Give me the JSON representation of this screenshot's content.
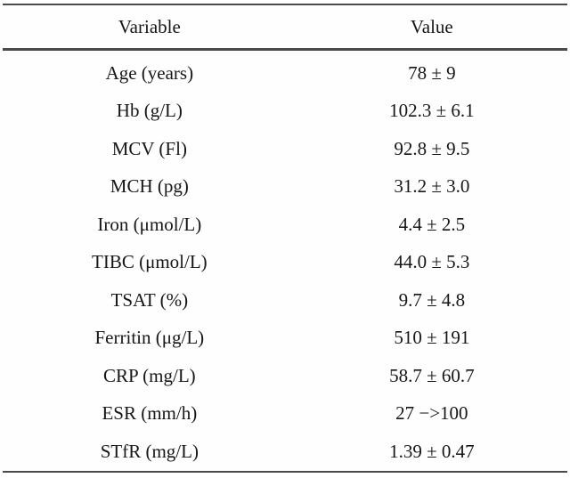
{
  "page": {
    "background_color": "#fefefe",
    "text_color": "#161616",
    "rule_color": "#4a4a4a"
  },
  "table": {
    "header": {
      "variable": "Variable",
      "value": "Value"
    },
    "rows": [
      {
        "variable": "Age (years)",
        "value": "78 ± 9"
      },
      {
        "variable": "Hb (g/L)",
        "value": "102.3 ± 6.1"
      },
      {
        "variable": "MCV (Fl)",
        "value": "92.8 ± 9.5"
      },
      {
        "variable": "MCH (pg)",
        "value": "31.2 ± 3.0"
      },
      {
        "variable": "Iron (μmol/L)",
        "value": "4.4 ± 2.5"
      },
      {
        "variable": "TIBC (μmol/L)",
        "value": "44.0 ± 5.3"
      },
      {
        "variable": "TSAT (%)",
        "value": "9.7 ± 4.8"
      },
      {
        "variable": "Ferritin (μg/L)",
        "value": "510 ± 191"
      },
      {
        "variable": "CRP (mg/L)",
        "value": "58.7 ± 60.7"
      },
      {
        "variable": "ESR (mm/h)",
        "value": "27 −>100"
      },
      {
        "variable": "STfR (mg/L)",
        "value": "1.39 ± 0.47"
      }
    ]
  }
}
